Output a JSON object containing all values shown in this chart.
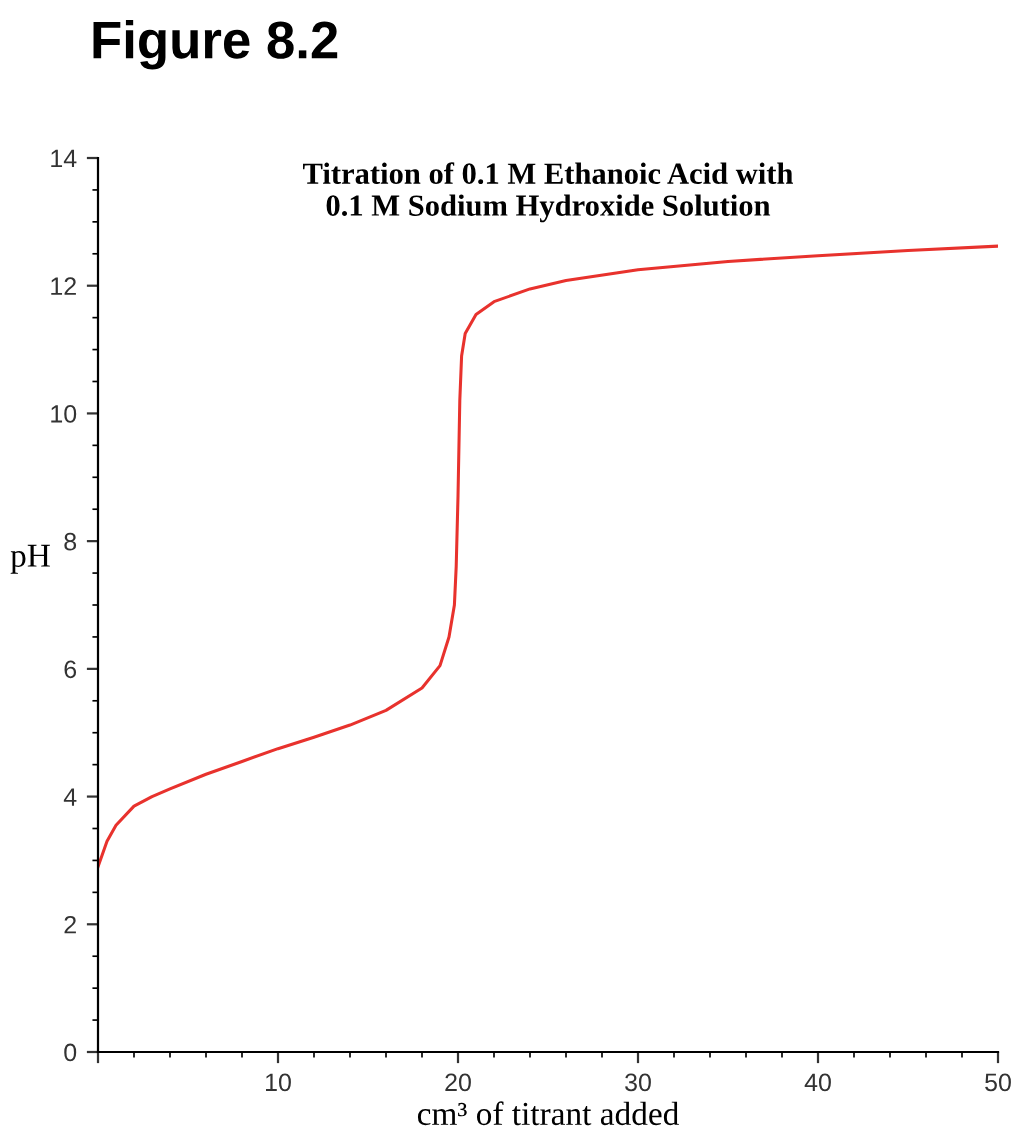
{
  "chart_data": {
    "type": "line",
    "title": "Titration of 0.1 M Ethanoic Acid with\n0.1 M Sodium Hydroxide Solution",
    "xlabel": "cm³ of titrant added",
    "ylabel": "pH",
    "annotations": [
      "Figure 8.2"
    ],
    "x": [
      0,
      0.5,
      1,
      2,
      3,
      4,
      6,
      8,
      10,
      12,
      14,
      16,
      18,
      19,
      19.5,
      19.8,
      19.9,
      20,
      20.1,
      20.2,
      20.4,
      21,
      22,
      24,
      26,
      30,
      35,
      40,
      45,
      50
    ],
    "series": [
      {
        "color": "#e8322d",
        "values": [
          2.9,
          3.3,
          3.55,
          3.85,
          4.0,
          4.12,
          4.35,
          4.55,
          4.75,
          4.93,
          5.12,
          5.35,
          5.7,
          6.05,
          6.5,
          7.0,
          7.6,
          8.7,
          10.2,
          10.9,
          11.25,
          11.55,
          11.75,
          11.95,
          12.08,
          12.25,
          12.38,
          12.47,
          12.55,
          12.62
        ]
      }
    ],
    "xlim": [
      0,
      50
    ],
    "ylim": [
      0,
      14
    ],
    "xticks": [
      {
        "value": 0,
        "label": null
      },
      10,
      20,
      30,
      40,
      50
    ],
    "yticks": [
      0,
      2,
      4,
      6,
      8,
      10,
      12,
      14
    ],
    "grid": false,
    "legend": false
  }
}
